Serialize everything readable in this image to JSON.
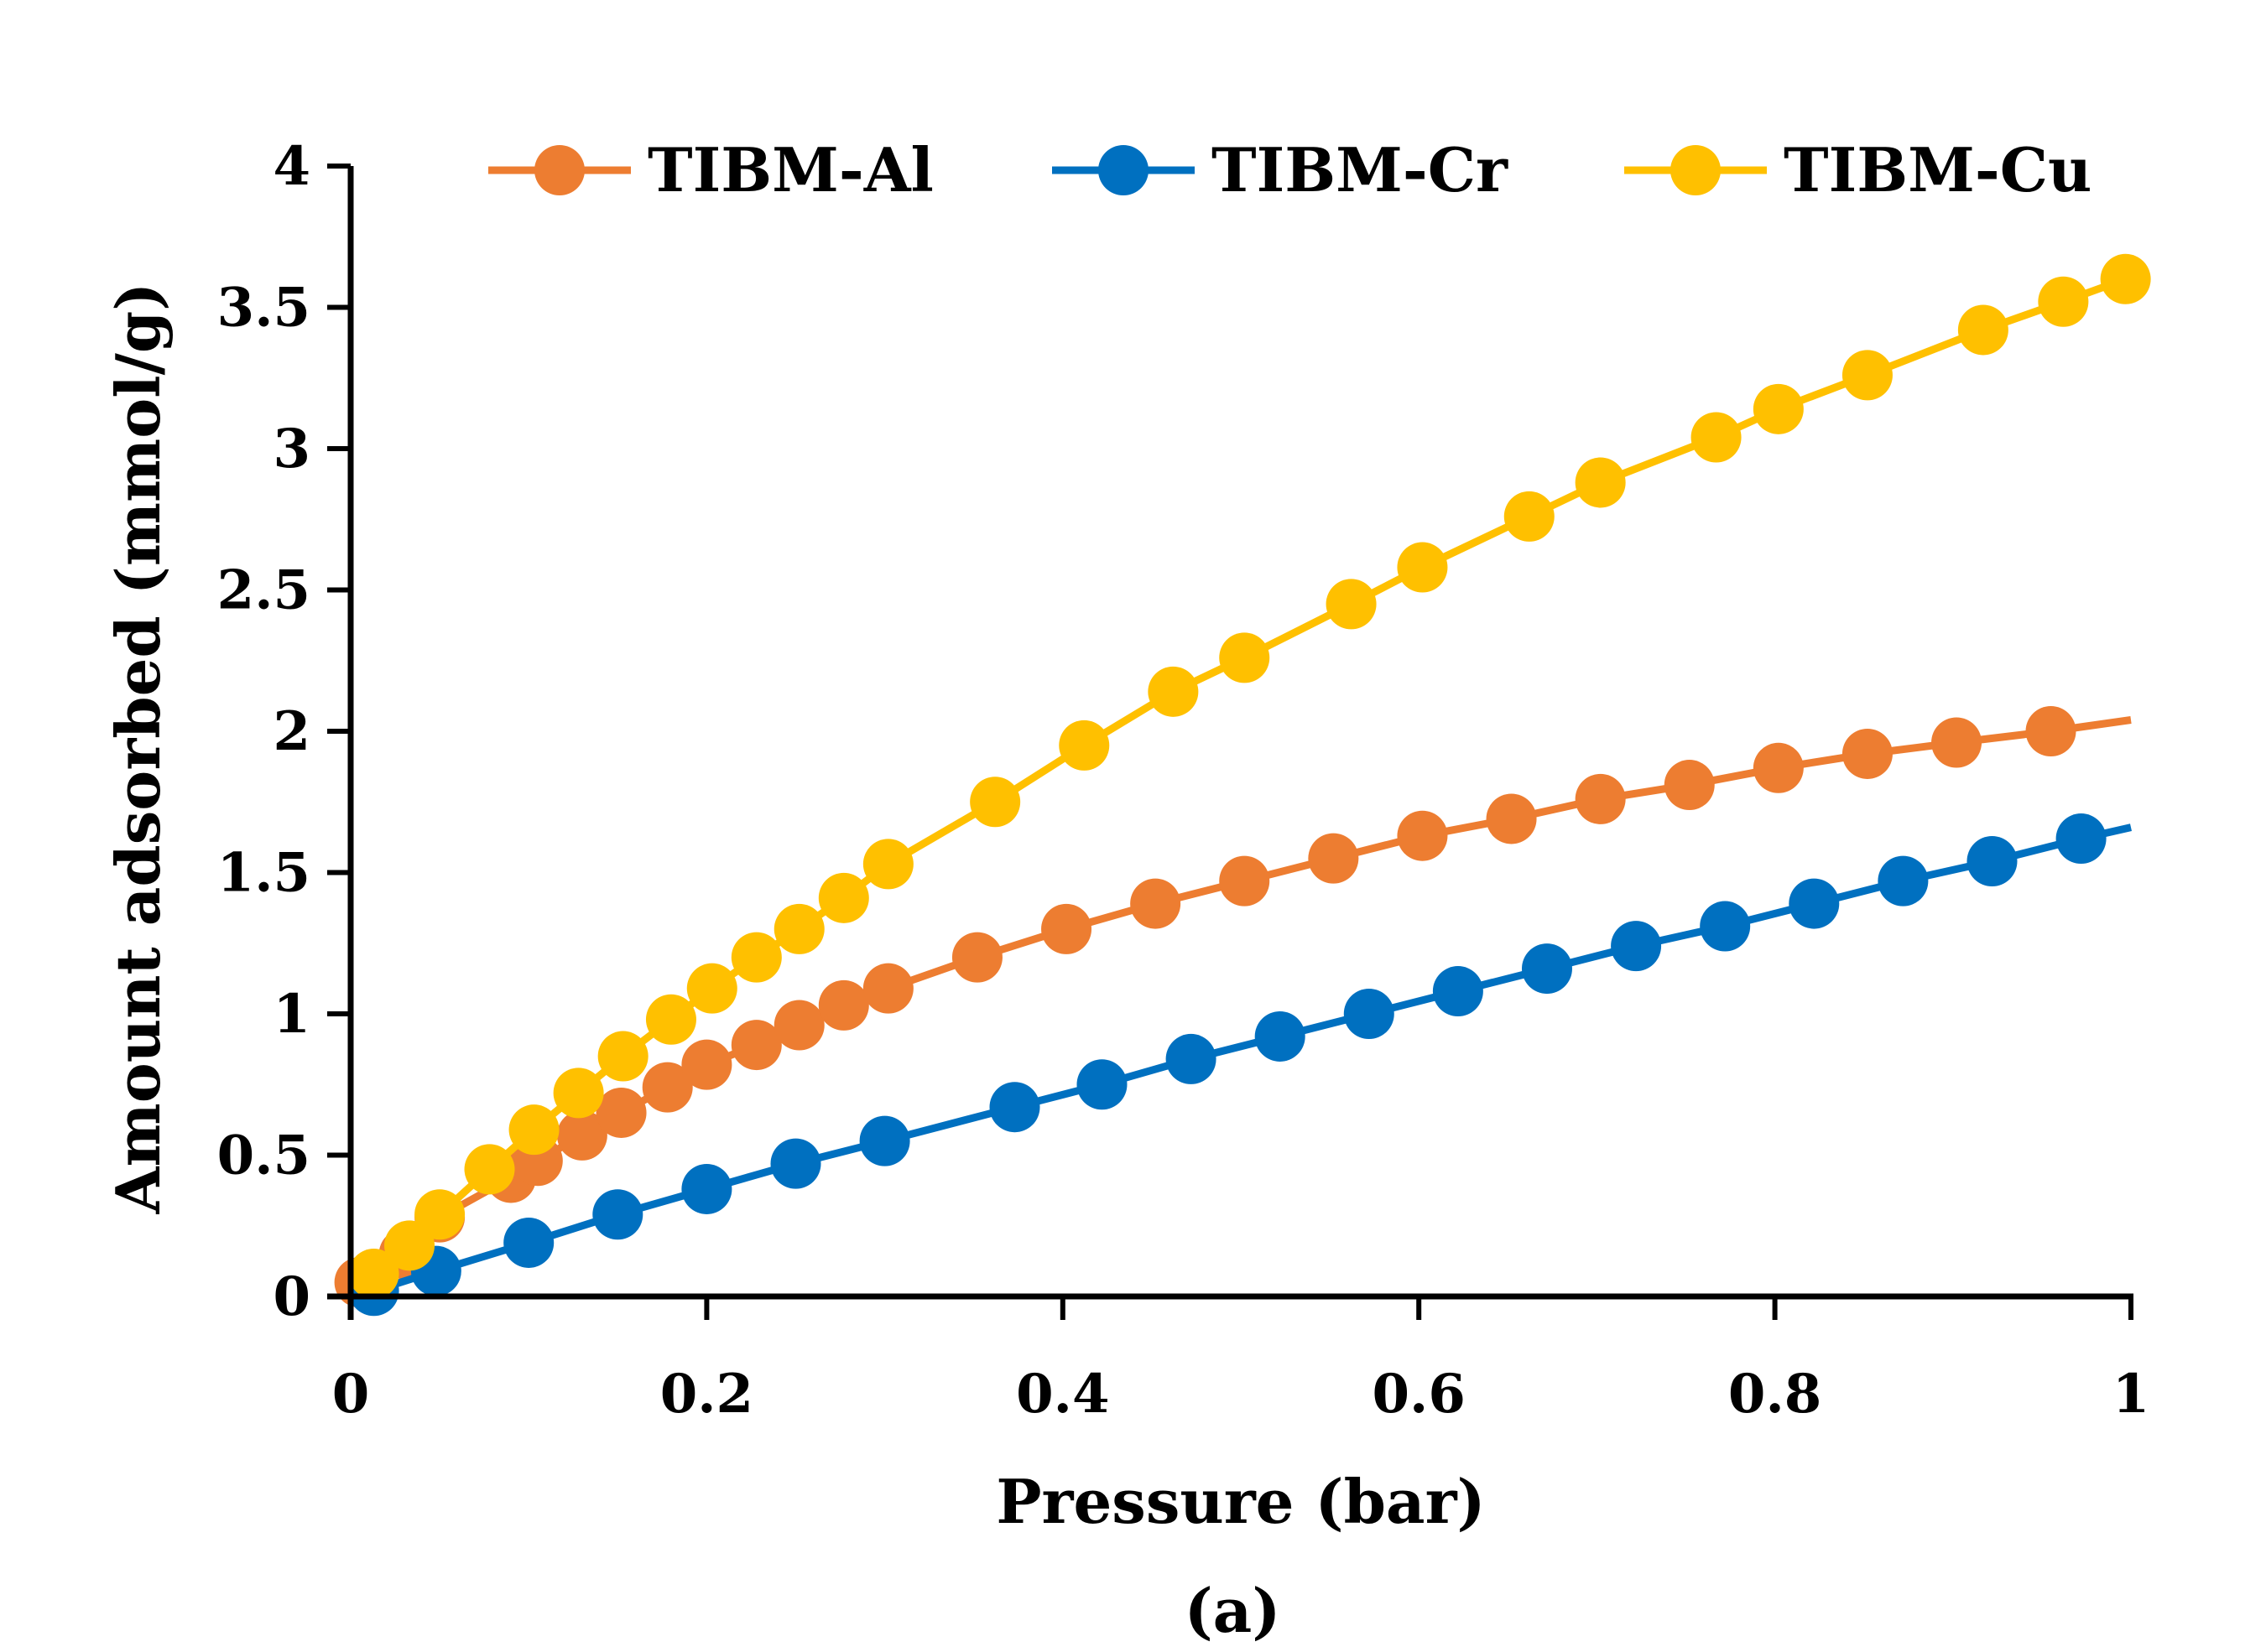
{
  "chart_data": {
    "type": "line",
    "title": "",
    "xlabel": "Pressure (bar)",
    "ylabel": "Amount adsorbed (mmol/g)",
    "caption": "(a)",
    "xlim": [
      0,
      1
    ],
    "ylim": [
      0,
      4
    ],
    "xticks": [
      "0",
      "0.2",
      "0.4",
      "0.6",
      "0.8",
      "1"
    ],
    "yticks": [
      "0",
      "0.5",
      "1",
      "1.5",
      "2",
      "2.5",
      "3",
      "3.5",
      "4"
    ],
    "xtick_values": [
      0,
      0.2,
      0.4,
      0.6,
      0.8,
      1
    ],
    "ytick_values": [
      0,
      0.5,
      1,
      1.5,
      2,
      2.5,
      3,
      3.5,
      4
    ],
    "grid": false,
    "legend_position": "top",
    "series": [
      {
        "name": "TIBM-Al",
        "color": "#ED7D31",
        "x": [
          0.005,
          0.03,
          0.05,
          0.09,
          0.105,
          0.13,
          0.152,
          0.178,
          0.2,
          0.228,
          0.252,
          0.277,
          0.302,
          0.352,
          0.402,
          0.452,
          0.502,
          0.552,
          0.602,
          0.652,
          0.702,
          0.752,
          0.802,
          0.852,
          0.902,
          0.955,
          1.0
        ],
        "y": [
          0.05,
          0.15,
          0.28,
          0.42,
          0.48,
          0.57,
          0.65,
          0.74,
          0.82,
          0.89,
          0.96,
          1.03,
          1.09,
          1.2,
          1.3,
          1.39,
          1.47,
          1.55,
          1.63,
          1.69,
          1.76,
          1.81,
          1.87,
          1.92,
          1.96,
          2.0,
          2.04
        ],
        "last_point_marker": false
      },
      {
        "name": "TIBM-Cr",
        "color": "#0070C0",
        "x": [
          0.013,
          0.048,
          0.1,
          0.15,
          0.2,
          0.25,
          0.3,
          0.373,
          0.422,
          0.472,
          0.522,
          0.572,
          0.622,
          0.672,
          0.722,
          0.772,
          0.822,
          0.872,
          0.922,
          0.972,
          1.0
        ],
        "y": [
          0.02,
          0.09,
          0.19,
          0.29,
          0.38,
          0.47,
          0.55,
          0.67,
          0.75,
          0.84,
          0.92,
          1.0,
          1.08,
          1.16,
          1.24,
          1.31,
          1.39,
          1.47,
          1.54,
          1.62,
          1.66
        ],
        "last_point_marker": false
      },
      {
        "name": "TIBM-Cu",
        "color": "#FFC000",
        "x": [
          0.013,
          0.033,
          0.05,
          0.078,
          0.103,
          0.128,
          0.153,
          0.18,
          0.203,
          0.228,
          0.252,
          0.277,
          0.302,
          0.362,
          0.412,
          0.462,
          0.502,
          0.562,
          0.602,
          0.662,
          0.702,
          0.767,
          0.802,
          0.852,
          0.917,
          0.962,
          0.997
        ],
        "y": [
          0.08,
          0.18,
          0.29,
          0.45,
          0.59,
          0.72,
          0.85,
          0.98,
          1.09,
          1.2,
          1.3,
          1.41,
          1.53,
          1.75,
          1.95,
          2.14,
          2.26,
          2.45,
          2.58,
          2.76,
          2.88,
          3.04,
          3.14,
          3.26,
          3.42,
          3.52,
          3.6
        ],
        "last_point_marker": true
      }
    ]
  }
}
